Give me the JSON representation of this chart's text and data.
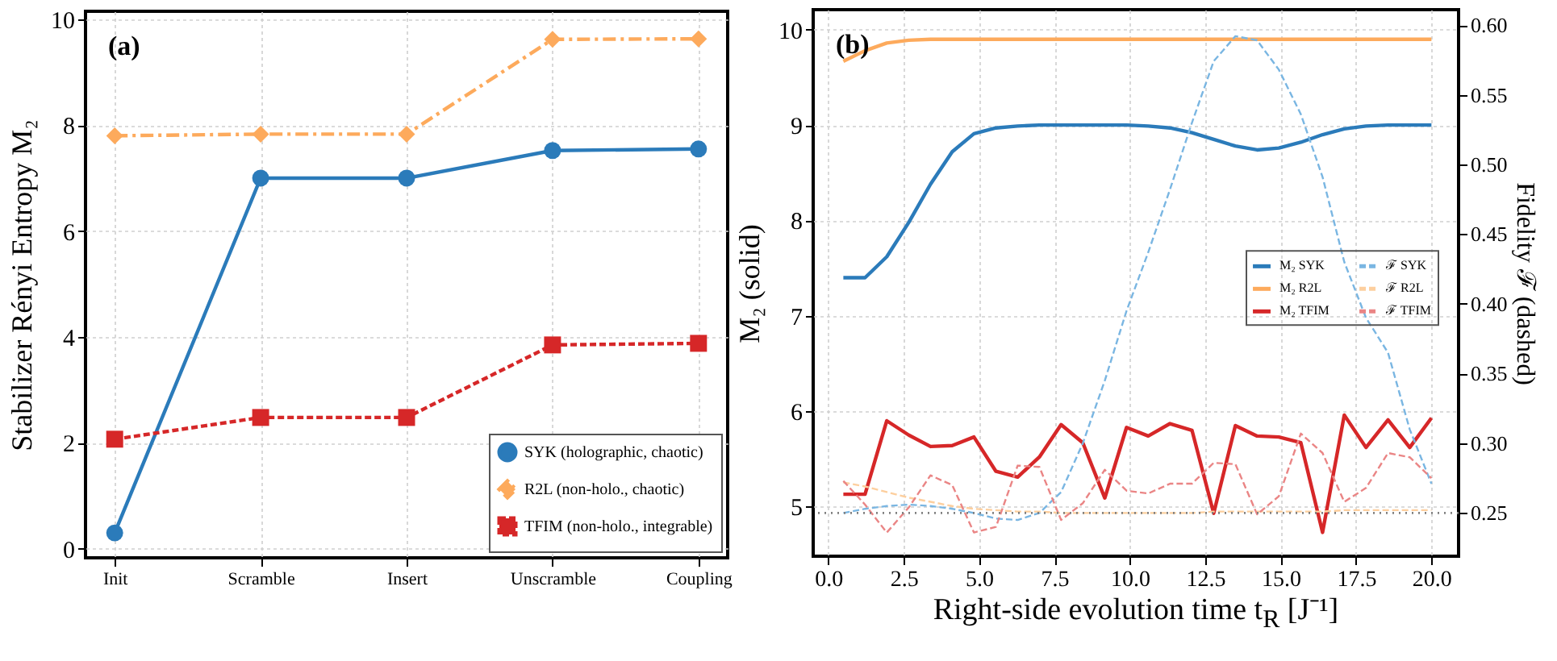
{
  "chart_data": [
    {
      "type": "line",
      "ylabel": "Stabilizer Rényi Entropy  M₂",
      "categories": [
        "Init",
        "Scramble",
        "Insert",
        "Unscramble",
        "Coupling"
      ],
      "ylim": [
        -0.17,
        10.15
      ],
      "yticks": [
        0,
        2,
        4,
        6,
        8,
        10
      ],
      "grid": true,
      "legend": "bottom right",
      "annotations": [
        "(a)"
      ],
      "series": [
        {
          "name": "SYK (holographic, chaotic)",
          "color": "#2b7bba",
          "marker": "circle",
          "line_style": "solid",
          "values": [
            0.3,
            7.0,
            7.0,
            7.52,
            7.55
          ]
        },
        {
          "name": "R2L (non-holo., chaotic)",
          "color": "#fdaa5c",
          "marker": "diamond",
          "line_style": "dashdot",
          "values": [
            7.8,
            7.83,
            7.83,
            9.62,
            9.63
          ]
        },
        {
          "name": "TFIM (non-holo., integrable)",
          "color": "#d62728",
          "marker": "square",
          "line_style": "dashed",
          "values": [
            2.07,
            2.48,
            2.48,
            3.85,
            3.88
          ]
        }
      ]
    },
    {
      "type": "line",
      "ylabel": "M₂  (solid)",
      "y2label": "Fidelity ℱ (dashed)",
      "xlabel": "Right-side evolution time  t$_{R}$  [J⁻¹]",
      "annotations": [
        "(b)"
      ],
      "grid": true,
      "legend": "right",
      "marker": "none",
      "x": [
        0.5,
        1.22,
        1.94,
        2.67,
        3.39,
        4.11,
        4.83,
        5.56,
        6.28,
        7.0,
        7.72,
        8.44,
        9.17,
        9.89,
        10.61,
        11.33,
        12.06,
        12.78,
        13.5,
        14.22,
        14.94,
        15.67,
        16.39,
        17.11,
        17.83,
        18.56,
        19.28,
        20.0
      ],
      "xlim": [
        -0.5,
        20.9
      ],
      "xticks": [
        {
          "value": 0,
          "label": "0.0"
        },
        {
          "value": 2.5,
          "label": "2.5"
        },
        {
          "value": 5,
          "label": "5.0"
        },
        {
          "value": 7.5,
          "label": "7.5"
        },
        {
          "value": 10,
          "label": "10.0"
        },
        {
          "value": 12.5,
          "label": "12.5"
        },
        {
          "value": 15,
          "label": "15.0"
        },
        {
          "value": 17.5,
          "label": "17.5"
        },
        {
          "value": 20,
          "label": "20.0"
        }
      ],
      "ylim": [
        4.48,
        10.21
      ],
      "yticks": [
        5,
        6,
        7,
        8,
        9,
        10
      ],
      "y2lim": [
        0.219,
        0.611
      ],
      "y2ticks": [
        0.25,
        {
          "value": 0.3,
          "label": "0.30"
        },
        0.35,
        {
          "value": 0.4,
          "label": "0.40"
        },
        0.45,
        {
          "value": 0.5,
          "label": "0.50"
        },
        0.55,
        {
          "value": 0.6,
          "label": "0.60"
        }
      ],
      "ref_lines": [
        {
          "axis": "y2",
          "value": 0.25,
          "color": "#808080",
          "line_style": "dotted"
        }
      ],
      "series": [
        {
          "name": "M₂ SYK",
          "color": "#2b7bba",
          "line_style": "solid",
          "values": [
            7.4,
            7.4,
            7.62,
            7.98,
            8.38,
            8.72,
            8.91,
            8.97,
            8.99,
            9.0,
            9.0,
            9.0,
            9.0,
            9.0,
            8.99,
            8.97,
            8.92,
            8.85,
            8.78,
            8.74,
            8.76,
            8.82,
            8.9,
            8.96,
            8.99,
            9.0,
            9.0,
            9.0
          ]
        },
        {
          "name": "M₂ R2L",
          "color": "#fdaa5c",
          "line_style": "solid",
          "values": [
            9.67,
            9.78,
            9.86,
            9.89,
            9.9,
            9.9,
            9.9,
            9.9,
            9.9,
            9.9,
            9.9,
            9.9,
            9.9,
            9.9,
            9.9,
            9.9,
            9.9,
            9.9,
            9.9,
            9.9,
            9.9,
            9.9,
            9.9,
            9.9,
            9.9,
            9.9,
            9.9,
            9.9
          ]
        },
        {
          "name": "M₂ TFIM",
          "color": "#d62728",
          "line_style": "solid",
          "values": [
            5.13,
            5.13,
            5.9,
            5.75,
            5.63,
            5.64,
            5.73,
            5.37,
            5.31,
            5.52,
            5.86,
            5.67,
            5.09,
            5.83,
            5.74,
            5.87,
            5.8,
            4.93,
            5.85,
            5.74,
            5.73,
            5.67,
            4.73,
            5.96,
            5.62,
            5.91,
            5.62,
            5.93
          ]
        },
        {
          "name": "ℱ SYK",
          "color": "#7ab6e2",
          "line_style": "dashed",
          "axis": "y2",
          "values": [
            0.25,
            0.253,
            0.255,
            0.256,
            0.255,
            0.253,
            0.25,
            0.246,
            0.245,
            0.25,
            0.265,
            0.3,
            0.345,
            0.395,
            0.437,
            0.482,
            0.53,
            0.574,
            0.592,
            0.589,
            0.568,
            0.536,
            0.491,
            0.43,
            0.39,
            0.365,
            0.31,
            0.271
          ]
        },
        {
          "name": "ℱ R2L",
          "color": "#fdcf9e",
          "line_style": "dashed",
          "axis": "y2",
          "values": [
            0.272,
            0.269,
            0.265,
            0.261,
            0.258,
            0.255,
            0.253,
            0.252,
            0.251,
            0.251,
            0.25,
            0.25,
            0.25,
            0.25,
            0.25,
            0.25,
            0.25,
            0.251,
            0.251,
            0.251,
            0.251,
            0.251,
            0.251,
            0.252,
            0.252,
            0.252,
            0.252,
            0.252
          ]
        },
        {
          "name": "ℱ TFIM",
          "color": "#ea8585",
          "line_style": "dashed",
          "axis": "y2",
          "values": [
            0.273,
            0.256,
            0.236,
            0.254,
            0.277,
            0.27,
            0.236,
            0.24,
            0.284,
            0.283,
            0.245,
            0.257,
            0.281,
            0.266,
            0.264,
            0.271,
            0.271,
            0.286,
            0.285,
            0.249,
            0.262,
            0.307,
            0.293,
            0.258,
            0.268,
            0.293,
            0.29,
            0.275
          ]
        }
      ]
    }
  ]
}
